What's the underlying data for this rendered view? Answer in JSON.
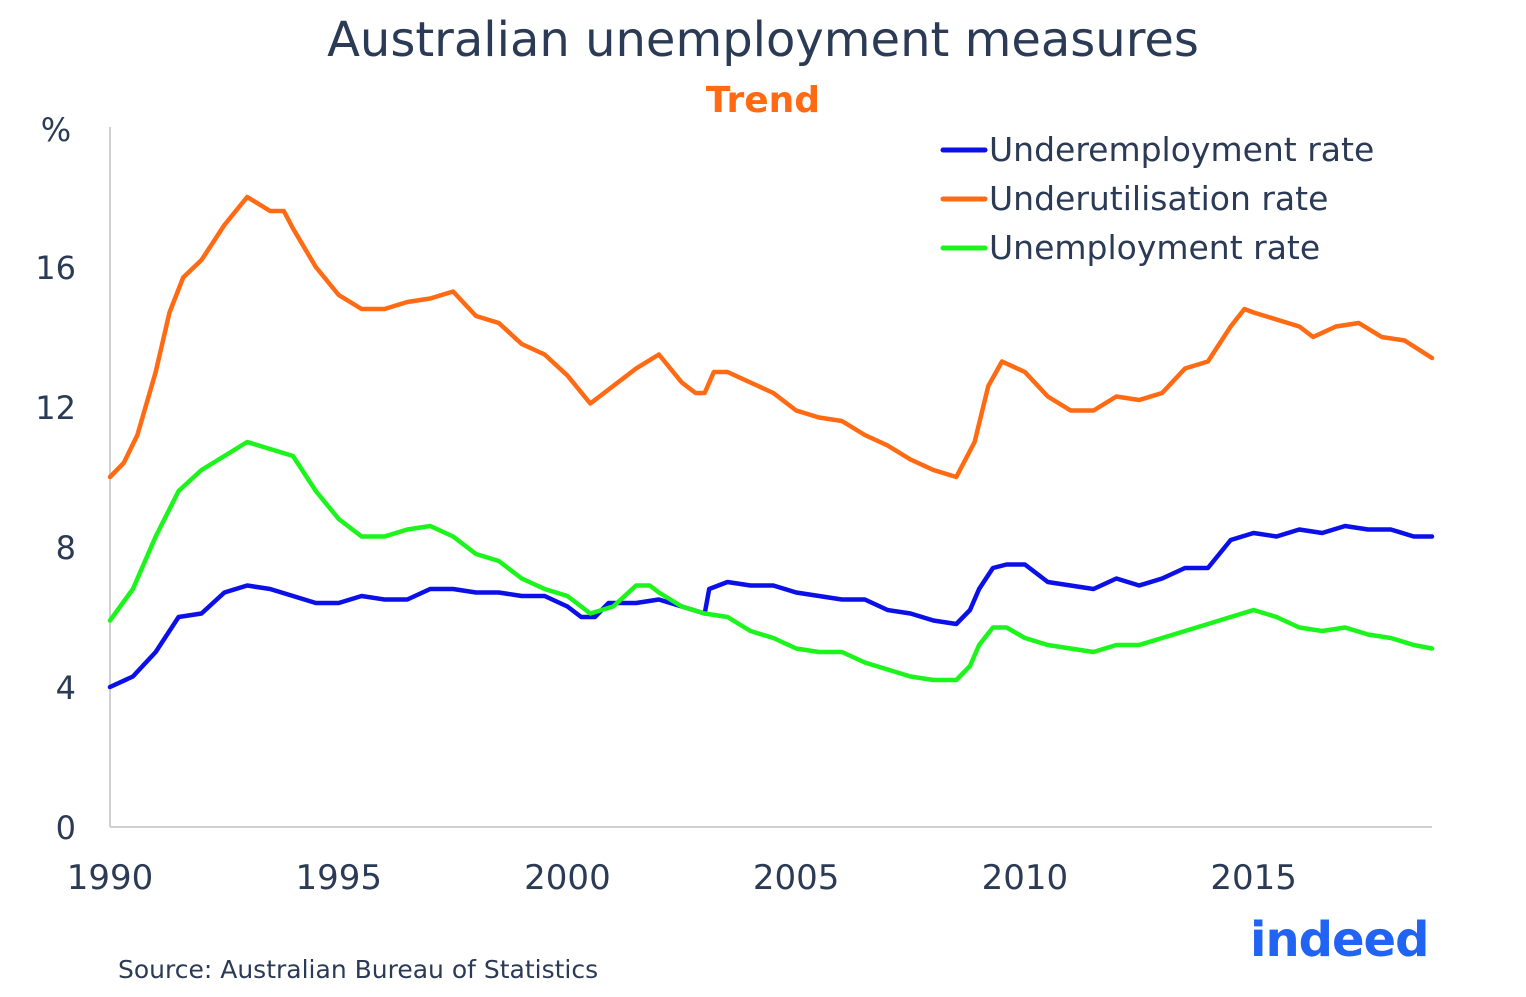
{
  "header": {
    "title": "Australian unemployment measures",
    "subtitle": "Trend"
  },
  "footer": {
    "source": "Source: Australian Bureau of Statistics",
    "logo_text": "indeed"
  },
  "colors": {
    "underemployment": "#0b10e8",
    "underutilisation": "#ff6a13",
    "unemployment": "#1cf51c",
    "text": "#2b3a55",
    "logo": "#2164f4"
  },
  "chart_data": {
    "type": "line",
    "title": "Australian unemployment measures",
    "subtitle": "Trend",
    "ylabel": "%",
    "xlabel": "",
    "xlim": [
      1990,
      2018.9
    ],
    "ylim": [
      0,
      20
    ],
    "x_ticks": [
      1990,
      1995,
      2000,
      2005,
      2010,
      2015
    ],
    "y_ticks": [
      0,
      4,
      8,
      12,
      16
    ],
    "legend_position": "top-right",
    "grid": false,
    "series": [
      {
        "name": "Underemployment rate",
        "color": "#0b10e8",
        "points": [
          [
            1990.0,
            4.0
          ],
          [
            1990.5,
            4.3
          ],
          [
            1991.0,
            5.0
          ],
          [
            1991.5,
            6.0
          ],
          [
            1992.0,
            6.1
          ],
          [
            1992.5,
            6.7
          ],
          [
            1993.0,
            6.9
          ],
          [
            1993.5,
            6.8
          ],
          [
            1994.0,
            6.6
          ],
          [
            1994.5,
            6.4
          ],
          [
            1995.0,
            6.4
          ],
          [
            1995.5,
            6.6
          ],
          [
            1996.0,
            6.5
          ],
          [
            1996.5,
            6.5
          ],
          [
            1997.0,
            6.8
          ],
          [
            1997.5,
            6.8
          ],
          [
            1998.0,
            6.7
          ],
          [
            1998.5,
            6.7
          ],
          [
            1999.0,
            6.6
          ],
          [
            1999.5,
            6.6
          ],
          [
            2000.0,
            6.3
          ],
          [
            2000.3,
            6.0
          ],
          [
            2000.6,
            6.0
          ],
          [
            2000.9,
            6.4
          ],
          [
            2001.2,
            6.4
          ],
          [
            2001.5,
            6.4
          ],
          [
            2002.0,
            6.5
          ],
          [
            2002.5,
            6.3
          ],
          [
            2003.0,
            6.1
          ],
          [
            2003.1,
            6.8
          ],
          [
            2003.5,
            7.0
          ],
          [
            2004.0,
            6.9
          ],
          [
            2004.5,
            6.9
          ],
          [
            2005.0,
            6.7
          ],
          [
            2005.5,
            6.6
          ],
          [
            2006.0,
            6.5
          ],
          [
            2006.5,
            6.5
          ],
          [
            2007.0,
            6.2
          ],
          [
            2007.5,
            6.1
          ],
          [
            2008.0,
            5.9
          ],
          [
            2008.5,
            5.8
          ],
          [
            2008.8,
            6.2
          ],
          [
            2009.0,
            6.8
          ],
          [
            2009.3,
            7.4
          ],
          [
            2009.6,
            7.5
          ],
          [
            2010.0,
            7.5
          ],
          [
            2010.5,
            7.0
          ],
          [
            2011.0,
            6.9
          ],
          [
            2011.5,
            6.8
          ],
          [
            2012.0,
            7.1
          ],
          [
            2012.5,
            6.9
          ],
          [
            2013.0,
            7.1
          ],
          [
            2013.5,
            7.4
          ],
          [
            2014.0,
            7.4
          ],
          [
            2014.5,
            8.2
          ],
          [
            2015.0,
            8.4
          ],
          [
            2015.5,
            8.3
          ],
          [
            2016.0,
            8.5
          ],
          [
            2016.5,
            8.4
          ],
          [
            2017.0,
            8.6
          ],
          [
            2017.5,
            8.5
          ],
          [
            2018.0,
            8.5
          ],
          [
            2018.5,
            8.3
          ],
          [
            2018.9,
            8.3
          ]
        ]
      },
      {
        "name": "Underutilisation rate",
        "color": "#ff6a13",
        "points": [
          [
            1990.0,
            10.0
          ],
          [
            1990.3,
            10.4
          ],
          [
            1990.6,
            11.2
          ],
          [
            1991.0,
            13.0
          ],
          [
            1991.3,
            14.7
          ],
          [
            1991.6,
            15.7
          ],
          [
            1992.0,
            16.2
          ],
          [
            1992.5,
            17.2
          ],
          [
            1993.0,
            18.0
          ],
          [
            1993.5,
            17.6
          ],
          [
            1993.8,
            17.6
          ],
          [
            1994.0,
            17.1
          ],
          [
            1994.5,
            16.0
          ],
          [
            1995.0,
            15.2
          ],
          [
            1995.5,
            14.8
          ],
          [
            1996.0,
            14.8
          ],
          [
            1996.5,
            15.0
          ],
          [
            1997.0,
            15.1
          ],
          [
            1997.5,
            15.3
          ],
          [
            1998.0,
            14.6
          ],
          [
            1998.5,
            14.4
          ],
          [
            1999.0,
            13.8
          ],
          [
            1999.5,
            13.5
          ],
          [
            2000.0,
            12.9
          ],
          [
            2000.5,
            12.1
          ],
          [
            2001.0,
            12.6
          ],
          [
            2001.5,
            13.1
          ],
          [
            2002.0,
            13.5
          ],
          [
            2002.5,
            12.7
          ],
          [
            2002.8,
            12.4
          ],
          [
            2003.0,
            12.4
          ],
          [
            2003.2,
            13.0
          ],
          [
            2003.5,
            13.0
          ],
          [
            2004.0,
            12.7
          ],
          [
            2004.5,
            12.4
          ],
          [
            2005.0,
            11.9
          ],
          [
            2005.5,
            11.7
          ],
          [
            2006.0,
            11.6
          ],
          [
            2006.5,
            11.2
          ],
          [
            2007.0,
            10.9
          ],
          [
            2007.5,
            10.5
          ],
          [
            2008.0,
            10.2
          ],
          [
            2008.5,
            10.0
          ],
          [
            2008.9,
            11.0
          ],
          [
            2009.2,
            12.6
          ],
          [
            2009.5,
            13.3
          ],
          [
            2010.0,
            13.0
          ],
          [
            2010.5,
            12.3
          ],
          [
            2011.0,
            11.9
          ],
          [
            2011.5,
            11.9
          ],
          [
            2012.0,
            12.3
          ],
          [
            2012.5,
            12.2
          ],
          [
            2013.0,
            12.4
          ],
          [
            2013.5,
            13.1
          ],
          [
            2014.0,
            13.3
          ],
          [
            2014.5,
            14.3
          ],
          [
            2014.8,
            14.8
          ],
          [
            2015.0,
            14.7
          ],
          [
            2015.5,
            14.5
          ],
          [
            2016.0,
            14.3
          ],
          [
            2016.3,
            14.0
          ],
          [
            2016.8,
            14.3
          ],
          [
            2017.3,
            14.4
          ],
          [
            2017.8,
            14.0
          ],
          [
            2018.3,
            13.9
          ],
          [
            2018.9,
            13.4
          ]
        ]
      },
      {
        "name": "Unemployment rate",
        "color": "#1cf51c",
        "points": [
          [
            1990.0,
            5.9
          ],
          [
            1990.5,
            6.8
          ],
          [
            1991.0,
            8.3
          ],
          [
            1991.5,
            9.6
          ],
          [
            1992.0,
            10.2
          ],
          [
            1992.5,
            10.6
          ],
          [
            1993.0,
            11.0
          ],
          [
            1993.5,
            10.8
          ],
          [
            1994.0,
            10.6
          ],
          [
            1994.5,
            9.6
          ],
          [
            1995.0,
            8.8
          ],
          [
            1995.5,
            8.3
          ],
          [
            1996.0,
            8.3
          ],
          [
            1996.5,
            8.5
          ],
          [
            1997.0,
            8.6
          ],
          [
            1997.5,
            8.3
          ],
          [
            1998.0,
            7.8
          ],
          [
            1998.5,
            7.6
          ],
          [
            1999.0,
            7.1
          ],
          [
            1999.5,
            6.8
          ],
          [
            2000.0,
            6.6
          ],
          [
            2000.5,
            6.1
          ],
          [
            2001.0,
            6.3
          ],
          [
            2001.5,
            6.9
          ],
          [
            2001.8,
            6.9
          ],
          [
            2002.0,
            6.7
          ],
          [
            2002.5,
            6.3
          ],
          [
            2003.0,
            6.1
          ],
          [
            2003.5,
            6.0
          ],
          [
            2004.0,
            5.6
          ],
          [
            2004.5,
            5.4
          ],
          [
            2005.0,
            5.1
          ],
          [
            2005.5,
            5.0
          ],
          [
            2006.0,
            5.0
          ],
          [
            2006.5,
            4.7
          ],
          [
            2007.0,
            4.5
          ],
          [
            2007.5,
            4.3
          ],
          [
            2008.0,
            4.2
          ],
          [
            2008.5,
            4.2
          ],
          [
            2008.8,
            4.6
          ],
          [
            2009.0,
            5.2
          ],
          [
            2009.3,
            5.7
          ],
          [
            2009.6,
            5.7
          ],
          [
            2010.0,
            5.4
          ],
          [
            2010.5,
            5.2
          ],
          [
            2011.0,
            5.1
          ],
          [
            2011.5,
            5.0
          ],
          [
            2012.0,
            5.2
          ],
          [
            2012.5,
            5.2
          ],
          [
            2013.0,
            5.4
          ],
          [
            2013.5,
            5.6
          ],
          [
            2014.0,
            5.8
          ],
          [
            2014.5,
            6.0
          ],
          [
            2015.0,
            6.2
          ],
          [
            2015.5,
            6.0
          ],
          [
            2016.0,
            5.7
          ],
          [
            2016.5,
            5.6
          ],
          [
            2017.0,
            5.7
          ],
          [
            2017.5,
            5.5
          ],
          [
            2018.0,
            5.4
          ],
          [
            2018.5,
            5.2
          ],
          [
            2018.9,
            5.1
          ]
        ]
      }
    ]
  }
}
